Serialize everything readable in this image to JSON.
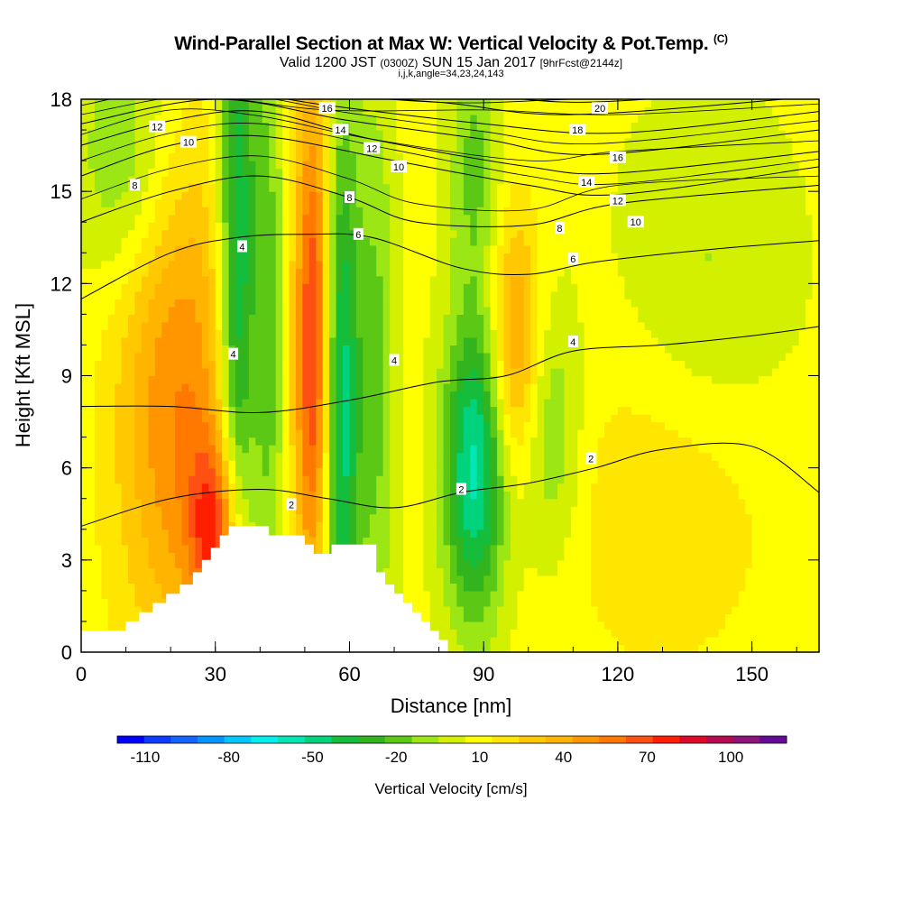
{
  "header": {
    "title": "Wind-Parallel Section at Max W: Vertical Velocity & Pot.Temp.",
    "title_units": "(C)",
    "valid_main": "Valid 1200 JST",
    "valid_utc": "(0300Z)",
    "valid_date": "SUN 15 Jan 2017",
    "forecast": "[9hrFcst@2144z]",
    "params": "i,j,k,angle=34,23,24,143"
  },
  "chart_data": {
    "type": "heatmap",
    "xlabel": "Distance [nm]",
    "ylabel": "Height [Kft MSL]",
    "xlim": [
      0,
      165
    ],
    "ylim": [
      0,
      18
    ],
    "x_ticks": [
      "0",
      "30",
      "60",
      "90",
      "120",
      "150"
    ],
    "y_ticks": [
      "0",
      "3",
      "6",
      "9",
      "12",
      "15",
      "18"
    ],
    "colorbar": {
      "title": "Vertical Velocity [cm/s]",
      "tick_labels": [
        "-110",
        "-80",
        "-50",
        "-20",
        "10",
        "40",
        "70",
        "100"
      ],
      "min": -120,
      "max": 120,
      "step": 10,
      "colors": [
        "#0000ff",
        "#0a3cff",
        "#1464ff",
        "#0096ff",
        "#00c8ff",
        "#00f0f0",
        "#00e6b4",
        "#00d27d",
        "#14be3c",
        "#32b41e",
        "#5ac814",
        "#9be614",
        "#d2f000",
        "#ffff00",
        "#ffe600",
        "#ffc800",
        "#ffb400",
        "#ff9600",
        "#ff7800",
        "#ff5014",
        "#ff1e00",
        "#dc0a28",
        "#b40a50",
        "#8c1478",
        "#640a96"
      ]
    },
    "terrain_kft": [
      [
        0,
        0.7
      ],
      [
        8,
        0.7
      ],
      [
        10,
        1.0
      ],
      [
        13,
        1.3
      ],
      [
        16,
        1.6
      ],
      [
        19,
        1.9
      ],
      [
        22,
        2.2
      ],
      [
        25,
        2.6
      ],
      [
        27,
        3.0
      ],
      [
        29,
        3.4
      ],
      [
        31,
        3.8
      ],
      [
        33,
        4.1
      ],
      [
        39,
        4.1
      ],
      [
        42,
        3.8
      ],
      [
        48,
        3.8
      ],
      [
        50,
        3.5
      ],
      [
        52,
        3.2
      ],
      [
        54,
        3.2
      ],
      [
        56,
        3.5
      ],
      [
        64,
        3.5
      ],
      [
        66,
        2.6
      ],
      [
        68,
        2.2
      ],
      [
        70,
        1.9
      ],
      [
        72,
        1.6
      ],
      [
        74,
        1.3
      ],
      [
        76,
        1.0
      ],
      [
        78,
        0.7
      ],
      [
        80,
        0.4
      ],
      [
        82,
        0.0
      ]
    ],
    "velocity_features": [
      {
        "x": 22,
        "z": 8,
        "w": 45,
        "sx": 10,
        "sz": 6
      },
      {
        "x": 30,
        "z": 4,
        "w": 50,
        "sx": 4,
        "sz": 2
      },
      {
        "x": 35,
        "z": 12,
        "w": -60,
        "sx": 3,
        "sz": 8
      },
      {
        "x": 42,
        "z": 10,
        "w": -30,
        "sx": 2.5,
        "sz": 8
      },
      {
        "x": 52,
        "z": 10,
        "w": 70,
        "sx": 3,
        "sz": 6
      },
      {
        "x": 58,
        "z": 8,
        "w": -60,
        "sx": 3,
        "sz": 7
      },
      {
        "x": 66,
        "z": 9,
        "w": -25,
        "sx": 3,
        "sz": 7
      },
      {
        "x": 88,
        "z": 6,
        "w": -65,
        "sx": 5,
        "sz": 3.5
      },
      {
        "x": 97,
        "z": 10,
        "w": 40,
        "sx": 4,
        "sz": 3
      },
      {
        "x": 88,
        "z": 16,
        "w": -25,
        "sx": 4,
        "sz": 3
      },
      {
        "x": 105,
        "z": 7,
        "w": -25,
        "sx": 5,
        "sz": 3
      },
      {
        "x": 130,
        "z": 5,
        "w": 15,
        "sx": 18,
        "sz": 4
      },
      {
        "x": 10,
        "z": 16,
        "w": -25,
        "sx": 8,
        "sz": 3
      },
      {
        "x": 140,
        "z": 12,
        "w": -15,
        "sx": 14,
        "sz": 4
      }
    ],
    "contours": [
      {
        "label": "2",
        "points": [
          [
            0,
            4.1
          ],
          [
            20,
            5.0
          ],
          [
            40,
            5.3
          ],
          [
            55,
            5.0
          ],
          [
            70,
            4.7
          ],
          [
            85,
            5.2
          ],
          [
            100,
            5.5
          ],
          [
            115,
            6.0
          ],
          [
            130,
            6.6
          ],
          [
            150,
            6.7
          ],
          [
            165,
            5.2
          ]
        ],
        "labels": [
          [
            47,
            4.8
          ],
          [
            85,
            5.3
          ],
          [
            114,
            6.3
          ]
        ]
      },
      {
        "label": "4",
        "points": [
          [
            0,
            8.0
          ],
          [
            20,
            8.0
          ],
          [
            40,
            7.8
          ],
          [
            60,
            8.2
          ],
          [
            80,
            8.8
          ],
          [
            95,
            9.0
          ],
          [
            110,
            9.8
          ],
          [
            130,
            10.0
          ],
          [
            150,
            10.3
          ],
          [
            165,
            10.6
          ]
        ],
        "labels": [
          [
            70,
            9.5
          ],
          [
            110,
            10.1
          ]
        ]
      },
      {
        "label": "6",
        "points": [
          [
            0,
            11.5
          ],
          [
            20,
            13.0
          ],
          [
            35,
            13.5
          ],
          [
            50,
            13.6
          ],
          [
            65,
            13.5
          ],
          [
            85,
            12.5
          ],
          [
            100,
            12.3
          ],
          [
            115,
            12.7
          ],
          [
            140,
            13.1
          ],
          [
            165,
            13.4
          ]
        ],
        "labels": [
          [
            62,
            13.6
          ],
          [
            110,
            12.8
          ]
        ]
      },
      {
        "label": "8",
        "points": [
          [
            0,
            14.0
          ],
          [
            20,
            15.0
          ],
          [
            40,
            15.5
          ],
          [
            60,
            14.8
          ],
          [
            75,
            14.0
          ],
          [
            100,
            13.9
          ],
          [
            120,
            14.6
          ],
          [
            165,
            15.2
          ]
        ],
        "labels": [
          [
            12,
            15.2
          ],
          [
            60,
            14.8
          ],
          [
            107,
            13.8
          ]
        ]
      },
      {
        "label": "10",
        "points": [
          [
            0,
            15.5
          ],
          [
            20,
            16.5
          ],
          [
            40,
            16.8
          ],
          [
            70,
            16.0
          ],
          [
            100,
            15.2
          ],
          [
            120,
            14.9
          ],
          [
            165,
            15.8
          ]
        ],
        "labels": [
          [
            24,
            16.6
          ],
          [
            71,
            15.8
          ],
          [
            124,
            14.0
          ]
        ]
      },
      {
        "label": "12",
        "points": [
          [
            0,
            16.5
          ],
          [
            20,
            17.3
          ],
          [
            40,
            17.6
          ],
          [
            65,
            16.7
          ],
          [
            100,
            15.8
          ],
          [
            120,
            15.6
          ],
          [
            165,
            16.3
          ]
        ],
        "labels": [
          [
            17,
            17.1
          ],
          [
            65,
            16.4
          ],
          [
            120,
            14.7
          ]
        ]
      },
      {
        "label": "14",
        "points": [
          [
            0,
            17.2
          ],
          [
            30,
            18.0
          ],
          [
            60,
            17.3
          ],
          [
            90,
            16.7
          ],
          [
            115,
            16.2
          ],
          [
            165,
            17.0
          ]
        ],
        "labels": [
          [
            58,
            17.0
          ],
          [
            113,
            15.3
          ]
        ]
      },
      {
        "label": "16",
        "points": [
          [
            0,
            17.8
          ],
          [
            25,
            18.4
          ],
          [
            55,
            17.8
          ],
          [
            90,
            17.2
          ],
          [
            120,
            16.9
          ],
          [
            165,
            17.6
          ]
        ],
        "labels": [
          [
            55,
            17.7
          ],
          [
            120,
            16.1
          ]
        ]
      },
      {
        "label": "18",
        "points": [
          [
            40,
            18.3
          ],
          [
            80,
            17.9
          ],
          [
            110,
            17.5
          ],
          [
            165,
            18.1
          ]
        ],
        "labels": [
          [
            111,
            17.0
          ]
        ]
      },
      {
        "label": "20",
        "points": [
          [
            80,
            18.4
          ],
          [
            112,
            17.9
          ],
          [
            165,
            18.5
          ]
        ],
        "labels": [
          [
            116,
            17.7
          ]
        ]
      }
    ],
    "contour_labels_extra": [
      {
        "text": "4",
        "x": 36,
        "z": 13.2
      },
      {
        "text": "4",
        "x": 34,
        "z": 9.7
      }
    ]
  }
}
